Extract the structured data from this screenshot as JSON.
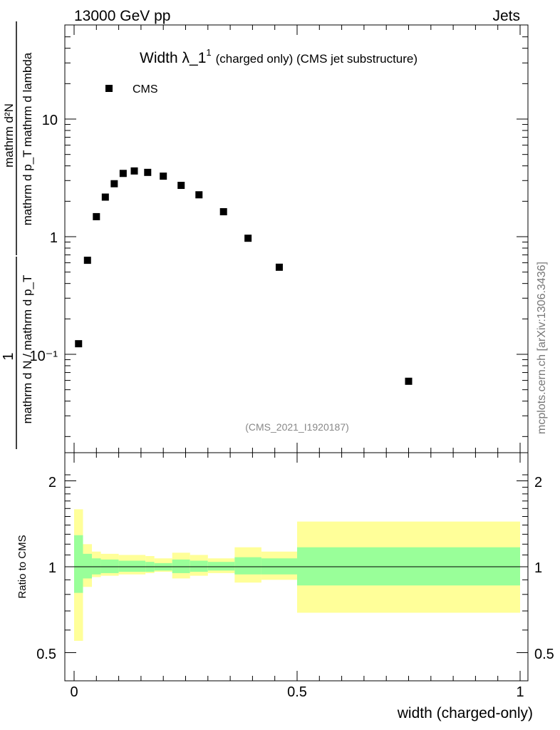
{
  "header": {
    "left": "13000 GeV pp",
    "right": "Jets"
  },
  "watermark": "mcplots.cern.ch [arXiv:1306.3436]",
  "colors": {
    "band_inner": "#99ff99",
    "band_outer": "#ffff99",
    "marker": "#000000"
  },
  "chart_data": [
    {
      "type": "scatter",
      "title_main": "Width λ_1",
      "title_sup": "1",
      "title_rest": "(charged only) (CMS jet substructure)",
      "ylabel_num": "mathrm d²N",
      "ylabel_den": "mathrm d p_T mathrm d lambda",
      "ylabel_left_num": "1",
      "ylabel_left_den": "mathrm d N / mathrm d p_T",
      "yscale": "log",
      "ylim": [
        0.02,
        50
      ],
      "xlim": [
        -0.02,
        1.0
      ],
      "y_ticks": [
        "10⁻¹",
        "1",
        "10"
      ],
      "legend": {
        "position": "top-left",
        "entries": [
          "CMS"
        ]
      },
      "annotation": "(CMS_2021_I1920187)",
      "series": [
        {
          "name": "CMS",
          "x": [
            0.01,
            0.03,
            0.05,
            0.07,
            0.09,
            0.11,
            0.135,
            0.165,
            0.2,
            0.24,
            0.28,
            0.335,
            0.39,
            0.46,
            0.75
          ],
          "y": [
            0.123,
            0.63,
            1.48,
            2.17,
            2.82,
            3.45,
            3.62,
            3.52,
            3.27,
            2.73,
            2.27,
            1.63,
            0.97,
            0.55,
            0.059
          ]
        }
      ]
    },
    {
      "type": "area",
      "ylabel": "Ratio to CMS",
      "xlabel": "width (charged-only)",
      "ylim": [
        0.43,
        2.3
      ],
      "xlim": [
        -0.02,
        1.0
      ],
      "y_ticks": [
        "0.5",
        "1",
        "2"
      ],
      "x_ticks": [
        "0",
        "0.5",
        "1"
      ],
      "reference_line": 1.0,
      "bins": [
        {
          "lo": 0.0,
          "hi": 0.02,
          "inner": [
            0.81,
            1.29
          ],
          "outer": [
            0.55,
            1.59
          ]
        },
        {
          "lo": 0.02,
          "hi": 0.04,
          "inner": [
            0.91,
            1.11
          ],
          "outer": [
            0.85,
            1.2
          ]
        },
        {
          "lo": 0.04,
          "hi": 0.06,
          "inner": [
            0.94,
            1.07
          ],
          "outer": [
            0.92,
            1.13
          ]
        },
        {
          "lo": 0.06,
          "hi": 0.1,
          "inner": [
            0.95,
            1.06
          ],
          "outer": [
            0.93,
            1.11
          ]
        },
        {
          "lo": 0.1,
          "hi": 0.16,
          "inner": [
            0.96,
            1.05
          ],
          "outer": [
            0.94,
            1.1
          ]
        },
        {
          "lo": 0.16,
          "hi": 0.18,
          "inner": [
            0.96,
            1.04
          ],
          "outer": [
            0.95,
            1.09
          ]
        },
        {
          "lo": 0.18,
          "hi": 0.22,
          "inner": [
            0.97,
            1.03
          ],
          "outer": [
            0.96,
            1.07
          ]
        },
        {
          "lo": 0.22,
          "hi": 0.26,
          "inner": [
            0.95,
            1.06
          ],
          "outer": [
            0.91,
            1.12
          ]
        },
        {
          "lo": 0.26,
          "hi": 0.3,
          "inner": [
            0.96,
            1.05
          ],
          "outer": [
            0.93,
            1.1
          ]
        },
        {
          "lo": 0.3,
          "hi": 0.36,
          "inner": [
            0.97,
            1.04
          ],
          "outer": [
            0.95,
            1.07
          ]
        },
        {
          "lo": 0.36,
          "hi": 0.42,
          "inner": [
            0.94,
            1.08
          ],
          "outer": [
            0.88,
            1.17
          ]
        },
        {
          "lo": 0.42,
          "hi": 0.5,
          "inner": [
            0.94,
            1.07
          ],
          "outer": [
            0.9,
            1.13
          ]
        },
        {
          "lo": 0.5,
          "hi": 1.0,
          "inner": [
            0.86,
            1.17
          ],
          "outer": [
            0.69,
            1.44
          ]
        }
      ]
    }
  ]
}
